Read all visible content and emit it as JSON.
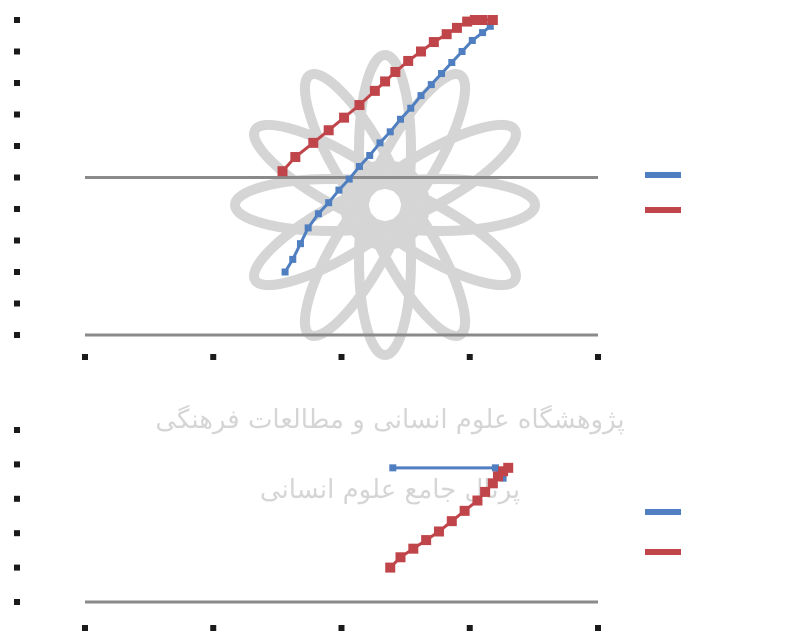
{
  "watermark": {
    "logo_icon": "institute-rosette-logo",
    "line1": "پژوهشگاه علوم انسانی و مطالعات فرهنگی",
    "line2": "پرتال جامع علوم انسانی"
  },
  "colors": {
    "blue": "#4f7fc0",
    "red": "#c0454a",
    "grid": "#8a8a8a",
    "watermark": "#b3b3b3"
  },
  "chart_data": [
    {
      "type": "line",
      "grid": true,
      "legend_placement": "right",
      "ylim": [
        0,
        1
      ],
      "xlim": [
        0,
        1
      ],
      "x_ticks": [
        "",
        "",
        "",
        "",
        ""
      ],
      "y_ticks": [
        "",
        "",
        "",
        "",
        "",
        "",
        "",
        "",
        "",
        "",
        ""
      ],
      "series": [
        {
          "color": "blue",
          "x": [
            0.39,
            0.405,
            0.42,
            0.435,
            0.455,
            0.475,
            0.495,
            0.515,
            0.535,
            0.555,
            0.575,
            0.595,
            0.615,
            0.635,
            0.655,
            0.675,
            0.695,
            0.715,
            0.735,
            0.755,
            0.775,
            0.79
          ],
          "y": [
            0.2,
            0.24,
            0.29,
            0.34,
            0.385,
            0.42,
            0.46,
            0.495,
            0.535,
            0.57,
            0.61,
            0.645,
            0.685,
            0.72,
            0.76,
            0.795,
            0.83,
            0.865,
            0.9,
            0.935,
            0.96,
            0.98
          ]
        },
        {
          "color": "red",
          "x": [
            0.385,
            0.41,
            0.445,
            0.475,
            0.505,
            0.535,
            0.565,
            0.585,
            0.605,
            0.63,
            0.655,
            0.68,
            0.705,
            0.725,
            0.745,
            0.76,
            0.775,
            0.795
          ],
          "y": [
            0.52,
            0.565,
            0.61,
            0.65,
            0.69,
            0.73,
            0.775,
            0.805,
            0.835,
            0.87,
            0.9,
            0.93,
            0.955,
            0.975,
            0.995,
            1.0,
            1.0,
            1.0
          ]
        }
      ]
    },
    {
      "type": "line",
      "grid": true,
      "legend_placement": "right",
      "ylim": [
        0,
        1
      ],
      "xlim": [
        0,
        1
      ],
      "x_ticks": [
        "",
        "",
        "",
        "",
        ""
      ],
      "y_ticks": [
        "",
        "",
        "",
        "",
        "",
        ""
      ],
      "series": [
        {
          "color": "blue",
          "x": [
            0.6,
            0.8,
            0.815
          ],
          "y": [
            0.78,
            0.78,
            0.72
          ]
        },
        {
          "color": "red",
          "x": [
            0.595,
            0.615,
            0.64,
            0.665,
            0.69,
            0.715,
            0.74,
            0.765,
            0.78,
            0.795,
            0.805,
            0.815,
            0.825
          ],
          "y": [
            0.2,
            0.26,
            0.31,
            0.36,
            0.41,
            0.47,
            0.53,
            0.59,
            0.64,
            0.69,
            0.73,
            0.76,
            0.78
          ]
        }
      ]
    }
  ]
}
